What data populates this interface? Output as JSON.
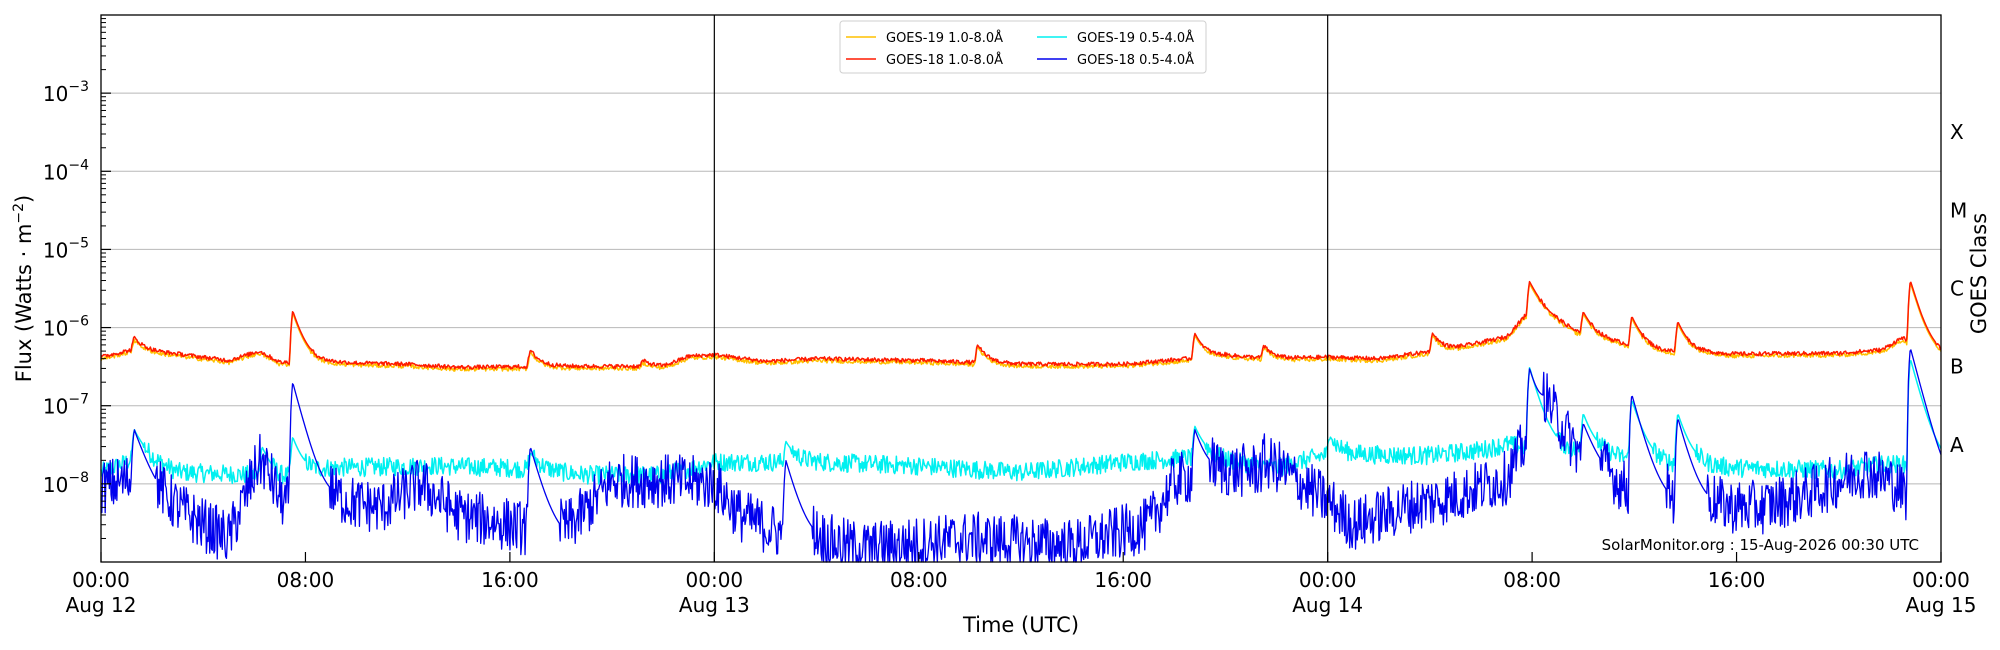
{
  "chart_data": {
    "type": "line",
    "xlabel": "Time (UTC)",
    "ylabel_main": "Flux (Watts · m",
    "ylabel_sup": "−2",
    "ylabel_close": ")",
    "right_axis_label": "GOES Class",
    "y_scale": "log",
    "ylim": [
      1e-09,
      0.01
    ],
    "xlim_hours": [
      0,
      72
    ],
    "grid": "horizontal at decades",
    "legend_position": "top-center",
    "y_ticks": [
      {
        "value": 1e-08,
        "base": "10",
        "exp": "−8"
      },
      {
        "value": 1e-07,
        "base": "10",
        "exp": "−7"
      },
      {
        "value": 1e-06,
        "base": "10",
        "exp": "−6"
      },
      {
        "value": 1e-05,
        "base": "10",
        "exp": "−5"
      },
      {
        "value": 0.0001,
        "base": "10",
        "exp": "−4"
      },
      {
        "value": 0.001,
        "base": "10",
        "exp": "−3"
      }
    ],
    "x_ticks": [
      {
        "hour": 0,
        "line1": "00:00",
        "line2": "Aug 12"
      },
      {
        "hour": 8,
        "line1": "08:00",
        "line2": ""
      },
      {
        "hour": 16,
        "line1": "16:00",
        "line2": ""
      },
      {
        "hour": 24,
        "line1": "00:00",
        "line2": "Aug 13"
      },
      {
        "hour": 32,
        "line1": "08:00",
        "line2": ""
      },
      {
        "hour": 40,
        "line1": "16:00",
        "line2": ""
      },
      {
        "hour": 48,
        "line1": "00:00",
        "line2": "Aug 14"
      },
      {
        "hour": 56,
        "line1": "08:00",
        "line2": ""
      },
      {
        "hour": 64,
        "line1": "16:00",
        "line2": ""
      },
      {
        "hour": 72,
        "line1": "00:00",
        "line2": "Aug 15"
      }
    ],
    "day_boundaries_hours": [
      24,
      48
    ],
    "goes_classes": [
      {
        "label": "A",
        "lower": 1e-08
      },
      {
        "label": "B",
        "lower": 1e-07
      },
      {
        "label": "C",
        "lower": 1e-06
      },
      {
        "label": "M",
        "lower": 1e-05
      },
      {
        "label": "X",
        "lower": 0.0001
      }
    ],
    "annotation": "SolarMonitor.org : 15-Aug-2026 00:30 UTC",
    "series": [
      {
        "name": "GOES-19 1.0-8.0Å",
        "color": "#ffc000",
        "channel": "long",
        "offset_factor": 0.94,
        "points": [
          [
            0,
            4.2e-07
          ],
          [
            1.2,
            5.2e-07
          ],
          [
            3,
            4.6e-07
          ],
          [
            5,
            3.8e-07
          ],
          [
            6.2,
            5e-07
          ],
          [
            7,
            3.6e-07
          ],
          [
            9,
            3.6e-07
          ],
          [
            12,
            3.4e-07
          ],
          [
            14,
            3.1e-07
          ],
          [
            18,
            3.2e-07
          ],
          [
            22,
            3.2e-07
          ],
          [
            23,
            4.3e-07
          ],
          [
            24,
            4.5e-07
          ],
          [
            26,
            3.7e-07
          ],
          [
            28,
            4e-07
          ],
          [
            32,
            3.8e-07
          ],
          [
            36,
            3.4e-07
          ],
          [
            40,
            3.4e-07
          ],
          [
            44,
            4.4e-07
          ],
          [
            46,
            4e-07
          ],
          [
            48,
            4.2e-07
          ],
          [
            50,
            4e-07
          ],
          [
            53,
            5.5e-07
          ],
          [
            55,
            7.6e-07
          ],
          [
            56,
            1.8e-06
          ],
          [
            57,
            1.2e-06
          ],
          [
            58,
            8e-07
          ],
          [
            61,
            5e-07
          ],
          [
            64,
            4.6e-07
          ],
          [
            68,
            4.7e-07
          ],
          [
            69.7,
            5.2e-07
          ],
          [
            70.5,
            7.5e-07
          ],
          [
            71.2,
            4.6e-07
          ],
          [
            72,
            4.3e-07
          ]
        ],
        "flares": [
          [
            1.3,
            7.5e-07
          ],
          [
            7.5,
            1.65e-06
          ],
          [
            16.8,
            5.2e-07
          ],
          [
            21.2,
            3.8e-07
          ],
          [
            34.3,
            6e-07
          ],
          [
            42.8,
            8.5e-07
          ],
          [
            45.5,
            5.8e-07
          ],
          [
            52.1,
            8.5e-07
          ],
          [
            55.9,
            3.9e-06
          ],
          [
            58.0,
            1.6e-06
          ],
          [
            59.9,
            1.4e-06
          ],
          [
            61.7,
            1.2e-06
          ],
          [
            70.8,
            4e-06
          ]
        ]
      },
      {
        "name": "GOES-18 1.0-8.0Å",
        "color": "#ff1a00",
        "channel": "long",
        "offset_factor": 1.0,
        "points": [
          [
            0,
            4.2e-07
          ],
          [
            1.2,
            5.2e-07
          ],
          [
            3,
            4.6e-07
          ],
          [
            5,
            3.8e-07
          ],
          [
            6.2,
            5e-07
          ],
          [
            7,
            3.6e-07
          ],
          [
            9,
            3.6e-07
          ],
          [
            12,
            3.4e-07
          ],
          [
            14,
            3.1e-07
          ],
          [
            18,
            3.2e-07
          ],
          [
            22,
            3.2e-07
          ],
          [
            23,
            4.3e-07
          ],
          [
            24,
            4.5e-07
          ],
          [
            26,
            3.7e-07
          ],
          [
            28,
            4e-07
          ],
          [
            32,
            3.8e-07
          ],
          [
            36,
            3.4e-07
          ],
          [
            40,
            3.4e-07
          ],
          [
            44,
            4.4e-07
          ],
          [
            46,
            4e-07
          ],
          [
            48,
            4.2e-07
          ],
          [
            50,
            4e-07
          ],
          [
            53,
            5.5e-07
          ],
          [
            55,
            7.6e-07
          ],
          [
            56,
            1.8e-06
          ],
          [
            57,
            1.2e-06
          ],
          [
            58,
            8e-07
          ],
          [
            61,
            5e-07
          ],
          [
            64,
            4.6e-07
          ],
          [
            68,
            4.7e-07
          ],
          [
            69.7,
            5.2e-07
          ],
          [
            70.5,
            7.5e-07
          ],
          [
            71.2,
            4.6e-07
          ],
          [
            72,
            4.3e-07
          ]
        ],
        "flares": [
          [
            1.3,
            7.5e-07
          ],
          [
            7.5,
            1.65e-06
          ],
          [
            16.8,
            5.2e-07
          ],
          [
            21.2,
            3.8e-07
          ],
          [
            34.3,
            6e-07
          ],
          [
            42.8,
            8.5e-07
          ],
          [
            45.5,
            5.8e-07
          ],
          [
            52.1,
            8.5e-07
          ],
          [
            55.9,
            3.9e-06
          ],
          [
            58.0,
            1.6e-06
          ],
          [
            59.9,
            1.4e-06
          ],
          [
            61.7,
            1.2e-06
          ],
          [
            70.8,
            4e-06
          ]
        ]
      },
      {
        "name": "GOES-19 0.5-4.0Å",
        "color": "#00f0f0",
        "channel": "short_quiet",
        "points": [
          [
            0,
            1.4e-08
          ],
          [
            1.5,
            2.2e-08
          ],
          [
            3,
            1.4e-08
          ],
          [
            6,
            1.3e-08
          ],
          [
            7,
            1.1e-08
          ],
          [
            9,
            1.6e-08
          ],
          [
            13,
            1.7e-08
          ],
          [
            16,
            1.6e-08
          ],
          [
            19,
            1.3e-08
          ],
          [
            22,
            1.3e-08
          ],
          [
            24,
            1.9e-08
          ],
          [
            28,
            1.9e-08
          ],
          [
            32,
            1.7e-08
          ],
          [
            36,
            1.4e-08
          ],
          [
            40,
            1.9e-08
          ],
          [
            43,
            2.2e-08
          ],
          [
            46,
            1.6e-08
          ],
          [
            48,
            2.4e-08
          ],
          [
            52,
            2.3e-08
          ],
          [
            54,
            2.7e-08
          ],
          [
            55,
            3.2e-08
          ],
          [
            56,
            2.9e-08
          ],
          [
            59,
            2.3e-08
          ],
          [
            61,
            1.8e-08
          ],
          [
            64,
            1.6e-08
          ],
          [
            68,
            1.5e-08
          ],
          [
            70,
            1.8e-08
          ],
          [
            72,
            1.6e-08
          ]
        ],
        "flares": [
          [
            1.3,
            5e-08
          ],
          [
            6.3,
            3e-08
          ],
          [
            7.5,
            4e-08
          ],
          [
            16.8,
            2.5e-08
          ],
          [
            26.8,
            3.5e-08
          ],
          [
            42.8,
            5.5e-08
          ],
          [
            48.1,
            4e-08
          ],
          [
            55.9,
            3.1e-07
          ],
          [
            58.0,
            8e-08
          ],
          [
            59.9,
            1.2e-07
          ],
          [
            61.7,
            8e-08
          ],
          [
            70.8,
            4e-07
          ]
        ]
      },
      {
        "name": "GOES-18 0.5-4.0Å",
        "color": "#0000ee",
        "channel": "short_active",
        "points": [
          [
            0,
            9e-09
          ],
          [
            1.5,
            1.2e-08
          ],
          [
            2.5,
            6e-09
          ],
          [
            4,
            3e-09
          ],
          [
            5,
            2e-09
          ],
          [
            6.2,
            2e-08
          ],
          [
            7,
            5e-09
          ],
          [
            9,
            6e-09
          ],
          [
            11,
            5e-09
          ],
          [
            12.5,
            1e-08
          ],
          [
            14,
            4e-09
          ],
          [
            16,
            3e-09
          ],
          [
            18,
            2e-09
          ],
          [
            20,
            1.1e-08
          ],
          [
            22,
            1.1e-08
          ],
          [
            24,
            1e-08
          ],
          [
            25,
            4e-09
          ],
          [
            27,
            2e-09
          ],
          [
            30,
            1.5e-09
          ],
          [
            34,
            2e-09
          ],
          [
            38,
            1.6e-09
          ],
          [
            41,
            3e-09
          ],
          [
            42,
            1.1e-08
          ],
          [
            43,
            1.3e-08
          ],
          [
            46,
            1.6e-08
          ],
          [
            48,
            6e-09
          ],
          [
            49,
            3e-09
          ],
          [
            51,
            5e-09
          ],
          [
            53,
            7e-09
          ],
          [
            55,
            1.2e-08
          ],
          [
            56.5,
            1e-07
          ],
          [
            58,
            2e-08
          ],
          [
            60,
            7e-09
          ],
          [
            62,
            5e-09
          ],
          [
            65,
            5e-09
          ],
          [
            67,
            8e-09
          ],
          [
            69,
            1.5e-08
          ],
          [
            70,
            1.1e-08
          ],
          [
            71.2,
            5e-09
          ],
          [
            72,
            6e-09
          ]
        ],
        "flares": [
          [
            1.3,
            5e-08
          ],
          [
            6.2,
            1.9e-08
          ],
          [
            7.5,
            2e-07
          ],
          [
            16.8,
            3e-08
          ],
          [
            26.8,
            2e-08
          ],
          [
            42.8,
            5e-08
          ],
          [
            45.5,
            2e-08
          ],
          [
            55.9,
            3e-07
          ],
          [
            58.0,
            6e-08
          ],
          [
            59.9,
            1.4e-07
          ],
          [
            61.7,
            7e-08
          ],
          [
            70.8,
            5.5e-07
          ]
        ]
      }
    ]
  }
}
